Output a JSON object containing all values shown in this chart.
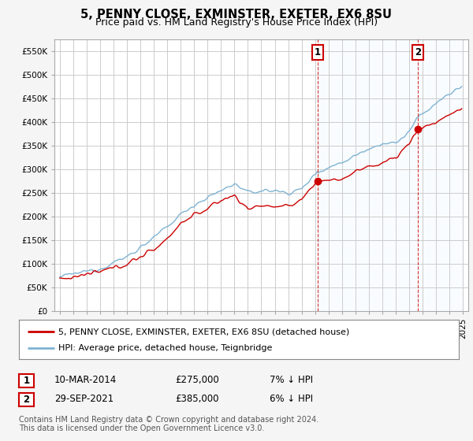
{
  "title": "5, PENNY CLOSE, EXMINSTER, EXETER, EX6 8SU",
  "subtitle": "Price paid vs. HM Land Registry's House Price Index (HPI)",
  "ylabel_ticks": [
    "£0",
    "£50K",
    "£100K",
    "£150K",
    "£200K",
    "£250K",
    "£300K",
    "£350K",
    "£400K",
    "£450K",
    "£500K",
    "£550K"
  ],
  "ytick_values": [
    0,
    50000,
    100000,
    150000,
    200000,
    250000,
    300000,
    350000,
    400000,
    450000,
    500000,
    550000
  ],
  "ylim": [
    0,
    575000
  ],
  "background_color": "#f5f5f5",
  "plot_bg_color": "#ffffff",
  "grid_color": "#cccccc",
  "hpi_color": "#7fb3d3",
  "price_color": "#cc0000",
  "shade_color": "#ddeeff",
  "marker1_label": "1",
  "marker2_label": "2",
  "marker1_price": 275000,
  "marker2_price": 385000,
  "legend_line1": "5, PENNY CLOSE, EXMINSTER, EXETER, EX6 8SU (detached house)",
  "legend_line2": "HPI: Average price, detached house, Teignbridge",
  "table_row1": [
    "1",
    "10-MAR-2014",
    "£275,000",
    "7% ↓ HPI"
  ],
  "table_row2": [
    "2",
    "29-SEP-2021",
    "£385,000",
    "6% ↓ HPI"
  ],
  "footer": "Contains HM Land Registry data © Crown copyright and database right 2024.\nThis data is licensed under the Open Government Licence v3.0.",
  "title_fontsize": 10.5,
  "subtitle_fontsize": 9,
  "tick_fontsize": 7.5,
  "legend_fontsize": 8,
  "table_fontsize": 8.5,
  "footer_fontsize": 7
}
